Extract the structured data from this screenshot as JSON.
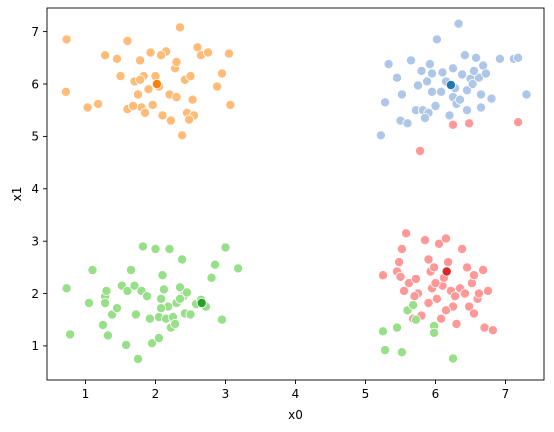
{
  "chart_data": {
    "type": "scatter",
    "title": "",
    "xlabel": "x0",
    "ylabel": "x1",
    "xlim": [
      0.45,
      7.55
    ],
    "ylim": [
      0.35,
      7.45
    ],
    "xticks": [
      1,
      2,
      3,
      4,
      5,
      6,
      7
    ],
    "yticks": [
      1,
      2,
      3,
      4,
      5,
      6,
      7
    ],
    "grid": false,
    "legend": "none",
    "point_edge_color": "#ffffff",
    "series": [
      {
        "color": "#ffbb78",
        "points": [
          [
            0.73,
            6.85
          ],
          [
            0.72,
            5.85
          ],
          [
            1.03,
            5.55
          ],
          [
            1.18,
            5.62
          ],
          [
            1.28,
            6.55
          ],
          [
            1.45,
            6.48
          ],
          [
            1.5,
            6.15
          ],
          [
            1.6,
            6.82
          ],
          [
            1.6,
            5.52
          ],
          [
            1.7,
            6.05
          ],
          [
            1.75,
            5.8
          ],
          [
            1.78,
            6.45
          ],
          [
            1.8,
            5.55
          ],
          [
            1.83,
            6.15
          ],
          [
            1.85,
            5.45
          ],
          [
            1.9,
            5.9
          ],
          [
            1.93,
            6.6
          ],
          [
            1.96,
            5.6
          ],
          [
            2.0,
            6.15
          ],
          [
            2.05,
            5.95
          ],
          [
            2.1,
            5.4
          ],
          [
            2.15,
            6.62
          ],
          [
            2.2,
            5.8
          ],
          [
            2.22,
            5.3
          ],
          [
            2.28,
            6.3
          ],
          [
            2.3,
            5.75
          ],
          [
            2.35,
            7.08
          ],
          [
            2.38,
            5.02
          ],
          [
            2.42,
            6.08
          ],
          [
            2.45,
            5.45
          ],
          [
            2.5,
            6.15
          ],
          [
            2.53,
            5.7
          ],
          [
            2.55,
            5.4
          ],
          [
            2.6,
            6.7
          ],
          [
            2.65,
            6.55
          ],
          [
            2.75,
            6.6
          ],
          [
            2.88,
            5.95
          ],
          [
            2.95,
            6.2
          ],
          [
            3.05,
            6.58
          ],
          [
            3.07,
            5.6
          ],
          [
            1.78,
            6.08
          ],
          [
            2.48,
            5.32
          ],
          [
            2.3,
            6.42
          ],
          [
            1.68,
            5.58
          ],
          [
            2.08,
            6.55
          ]
        ],
        "center": [
          2.02,
          6.0
        ],
        "center_color": "#ff7f0e"
      },
      {
        "color": "#aec7e8",
        "points": [
          [
            5.22,
            5.02
          ],
          [
            5.28,
            5.65
          ],
          [
            5.33,
            6.38
          ],
          [
            5.45,
            6.12
          ],
          [
            5.5,
            5.3
          ],
          [
            5.52,
            5.8
          ],
          [
            5.6,
            5.25
          ],
          [
            5.65,
            6.45
          ],
          [
            5.72,
            5.5
          ],
          [
            5.75,
            5.97
          ],
          [
            5.8,
            6.25
          ],
          [
            5.82,
            5.5
          ],
          [
            5.88,
            6.05
          ],
          [
            5.9,
            5.45
          ],
          [
            5.92,
            6.38
          ],
          [
            5.95,
            6.2
          ],
          [
            6.0,
            5.58
          ],
          [
            6.02,
            6.85
          ],
          [
            6.08,
            5.85
          ],
          [
            6.1,
            6.22
          ],
          [
            6.15,
            6.05
          ],
          [
            6.2,
            5.4
          ],
          [
            6.25,
            5.75
          ],
          [
            6.28,
            5.92
          ],
          [
            6.3,
            5.62
          ],
          [
            6.33,
            7.15
          ],
          [
            6.38,
            6.18
          ],
          [
            6.42,
            6.55
          ],
          [
            6.45,
            5.88
          ],
          [
            6.5,
            6.1
          ],
          [
            6.53,
            6.0
          ],
          [
            6.58,
            6.5
          ],
          [
            6.62,
            6.12
          ],
          [
            6.65,
            5.8
          ],
          [
            6.68,
            6.35
          ],
          [
            6.72,
            6.2
          ],
          [
            6.8,
            5.72
          ],
          [
            6.92,
            6.48
          ],
          [
            7.12,
            6.48
          ],
          [
            7.18,
            6.5
          ],
          [
            7.3,
            5.8
          ],
          [
            6.35,
            5.7
          ],
          [
            5.85,
            5.35
          ],
          [
            6.55,
            6.25
          ],
          [
            6.25,
            6.3
          ],
          [
            5.95,
            5.85
          ],
          [
            6.45,
            5.5
          ],
          [
            6.65,
            5.55
          ]
        ],
        "center": [
          6.22,
          5.98
        ],
        "center_color": "#1f77b4"
      },
      {
        "color": "#98df8a",
        "points": [
          [
            0.73,
            2.1
          ],
          [
            0.78,
            1.22
          ],
          [
            1.05,
            1.82
          ],
          [
            1.1,
            2.45
          ],
          [
            1.25,
            1.4
          ],
          [
            1.28,
            1.95
          ],
          [
            1.3,
            2.05
          ],
          [
            1.32,
            1.2
          ],
          [
            1.38,
            1.6
          ],
          [
            1.45,
            1.72
          ],
          [
            1.52,
            2.15
          ],
          [
            1.58,
            1.02
          ],
          [
            1.6,
            2.05
          ],
          [
            1.7,
            2.15
          ],
          [
            1.72,
            1.6
          ],
          [
            1.75,
            0.75
          ],
          [
            1.8,
            2.05
          ],
          [
            1.82,
            2.9
          ],
          [
            1.88,
            1.95
          ],
          [
            1.92,
            1.52
          ],
          [
            1.95,
            1.05
          ],
          [
            2.0,
            2.85
          ],
          [
            2.05,
            1.55
          ],
          [
            2.08,
            1.9
          ],
          [
            2.1,
            2.35
          ],
          [
            2.15,
            1.52
          ],
          [
            2.18,
            1.75
          ],
          [
            2.2,
            2.85
          ],
          [
            2.22,
            1.35
          ],
          [
            2.25,
            1.55
          ],
          [
            2.3,
            1.82
          ],
          [
            2.35,
            2.12
          ],
          [
            2.38,
            2.65
          ],
          [
            2.4,
            1.95
          ],
          [
            2.42,
            1.62
          ],
          [
            2.45,
            2.02
          ],
          [
            2.5,
            1.6
          ],
          [
            2.58,
            1.8
          ],
          [
            2.65,
            1.88
          ],
          [
            2.72,
            1.75
          ],
          [
            2.8,
            2.3
          ],
          [
            2.85,
            2.55
          ],
          [
            2.95,
            1.5
          ],
          [
            3.0,
            2.88
          ],
          [
            3.18,
            2.48
          ],
          [
            2.08,
            1.72
          ],
          [
            2.28,
            1.42
          ],
          [
            1.65,
            2.45
          ],
          [
            2.05,
            1.15
          ],
          [
            2.35,
            1.9
          ],
          [
            1.28,
            1.82
          ],
          [
            2.12,
            2.08
          ]
        ],
        "center": [
          2.66,
          1.82
        ],
        "center_color": "#2ca02c"
      },
      {
        "color": "#ff9896",
        "points": [
          [
            5.25,
            2.35
          ],
          [
            5.45,
            2.42
          ],
          [
            5.48,
            2.6
          ],
          [
            5.52,
            2.85
          ],
          [
            5.55,
            2.05
          ],
          [
            5.58,
            3.15
          ],
          [
            5.62,
            2.2
          ],
          [
            5.68,
            1.52
          ],
          [
            5.72,
            2.28
          ],
          [
            5.75,
            2.0
          ],
          [
            5.8,
            1.58
          ],
          [
            5.85,
            3.02
          ],
          [
            5.9,
            1.82
          ],
          [
            5.93,
            2.42
          ],
          [
            5.95,
            2.1
          ],
          [
            5.98,
            2.5
          ],
          [
            6.02,
            1.9
          ],
          [
            6.05,
            2.95
          ],
          [
            6.08,
            1.52
          ],
          [
            6.1,
            2.15
          ],
          [
            6.12,
            2.3
          ],
          [
            6.15,
            3.05
          ],
          [
            6.18,
            2.6
          ],
          [
            6.22,
            2.05
          ],
          [
            6.25,
            1.75
          ],
          [
            6.28,
            1.95
          ],
          [
            6.3,
            1.42
          ],
          [
            6.35,
            2.1
          ],
          [
            6.38,
            2.85
          ],
          [
            6.42,
            2.0
          ],
          [
            6.45,
            2.5
          ],
          [
            6.48,
            1.75
          ],
          [
            6.52,
            2.2
          ],
          [
            6.55,
            2.35
          ],
          [
            6.6,
            1.9
          ],
          [
            6.62,
            2.0
          ],
          [
            6.68,
            2.45
          ],
          [
            6.7,
            1.35
          ],
          [
            6.75,
            2.05
          ],
          [
            6.82,
            1.3
          ],
          [
            5.78,
            4.72
          ],
          [
            6.25,
            5.22
          ],
          [
            6.48,
            5.25
          ],
          [
            7.18,
            5.27
          ],
          [
            5.9,
            2.65
          ],
          [
            6.0,
            2.2
          ],
          [
            6.55,
            1.62
          ],
          [
            5.5,
            2.32
          ],
          [
            6.15,
            1.68
          ],
          [
            5.7,
            1.95
          ]
        ],
        "center": [
          6.16,
          2.42
        ],
        "center_color": "#d62728"
      },
      {
        "color": "#98df8a",
        "points": [
          [
            5.25,
            1.28
          ],
          [
            5.28,
            0.92
          ],
          [
            5.45,
            1.35
          ],
          [
            5.52,
            0.88
          ],
          [
            5.6,
            1.68
          ],
          [
            5.68,
            1.78
          ],
          [
            5.72,
            1.5
          ],
          [
            5.98,
            1.38
          ],
          [
            5.98,
            1.25
          ],
          [
            6.25,
            0.76
          ]
        ]
      }
    ]
  }
}
